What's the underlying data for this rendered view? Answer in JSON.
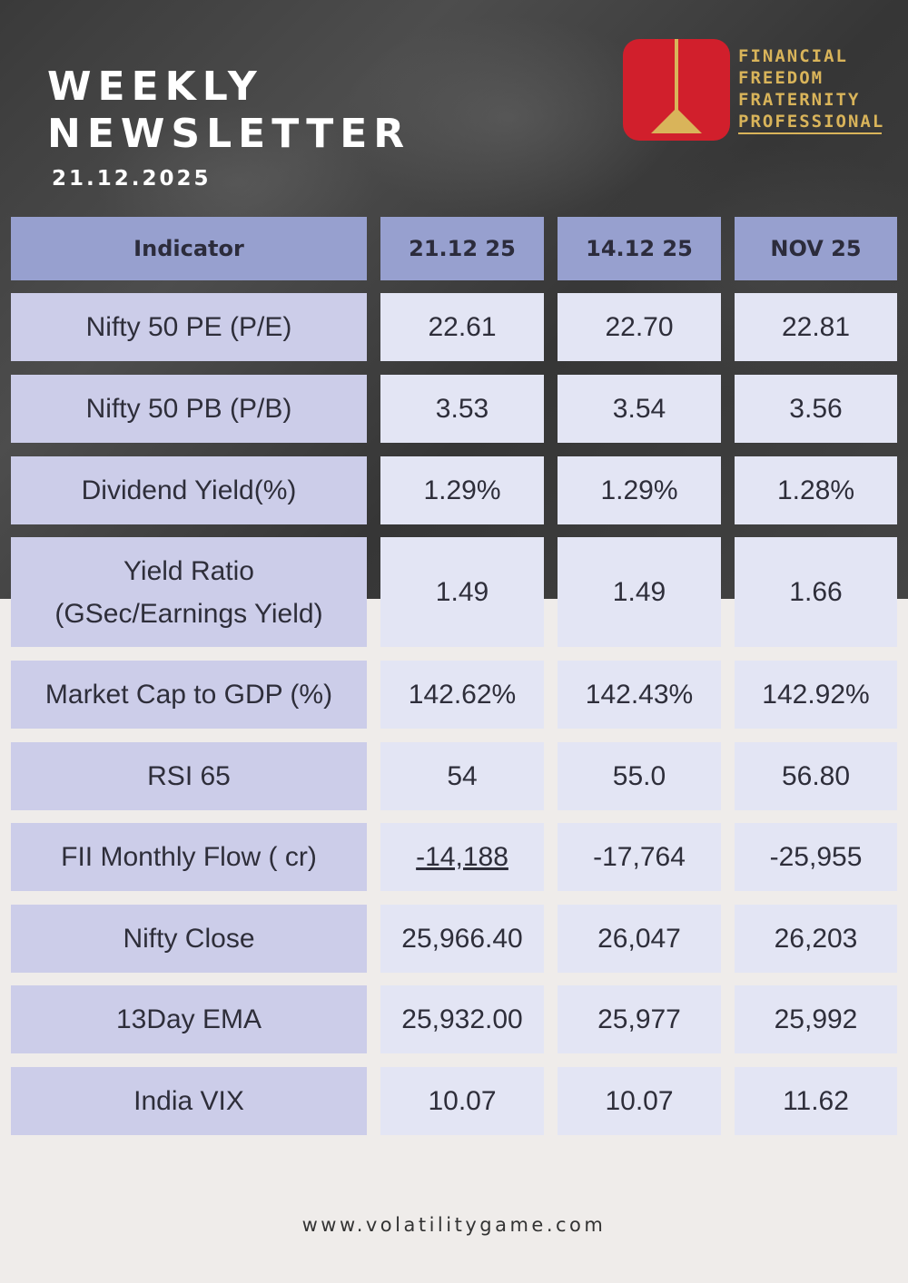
{
  "header": {
    "title_line1": "WEEKLY",
    "title_line2": "NEWSLETTER",
    "date": "21.12.2025"
  },
  "brand": {
    "line1": "FINANCIAL",
    "line2": "FREEDOM",
    "line3": "FRATERNITY",
    "line4": "PROFESSIONAL",
    "logo_color": "#d11f2c",
    "accent_color": "#d9b45a"
  },
  "table": {
    "headers": [
      "Indicator",
      "21.12 25",
      "14.12 25",
      "NOV 25"
    ],
    "rows": [
      {
        "indicator": "Nifty 50 PE (P/E)",
        "values": [
          "22.61",
          "22.70",
          "22.81"
        ]
      },
      {
        "indicator": "Nifty 50 PB (P/B)",
        "values": [
          "3.53",
          "3.54",
          "3.56"
        ]
      },
      {
        "indicator": "Dividend Yield(%)",
        "values": [
          "1.29%",
          "1.29%",
          "1.28%"
        ]
      },
      {
        "indicator_line1": "Yield Ratio",
        "indicator_line2": "(GSec/Earnings Yield)",
        "values": [
          "1.49",
          "1.49",
          "1.66"
        ]
      },
      {
        "indicator": "Market Cap to GDP (%)",
        "values": [
          "142.62%",
          "142.43%",
          "142.92%"
        ]
      },
      {
        "indicator": "RSI 65",
        "values": [
          "54",
          "55.0",
          "56.80"
        ]
      },
      {
        "indicator": "FII Monthly Flow ( cr)",
        "values": [
          "-14,188",
          "-17,764",
          "-25,955"
        ]
      },
      {
        "indicator": "Nifty Close",
        "values": [
          "25,966.40",
          "26,047",
          "26,203"
        ]
      },
      {
        "indicator": "13Day EMA",
        "values": [
          "25,932.00",
          "25,977",
          "25,992"
        ]
      },
      {
        "indicator": "India VIX",
        "values": [
          "10.07",
          "10.07",
          "11.62"
        ]
      }
    ]
  },
  "footer": {
    "website": "www.volatilitygame.com"
  }
}
